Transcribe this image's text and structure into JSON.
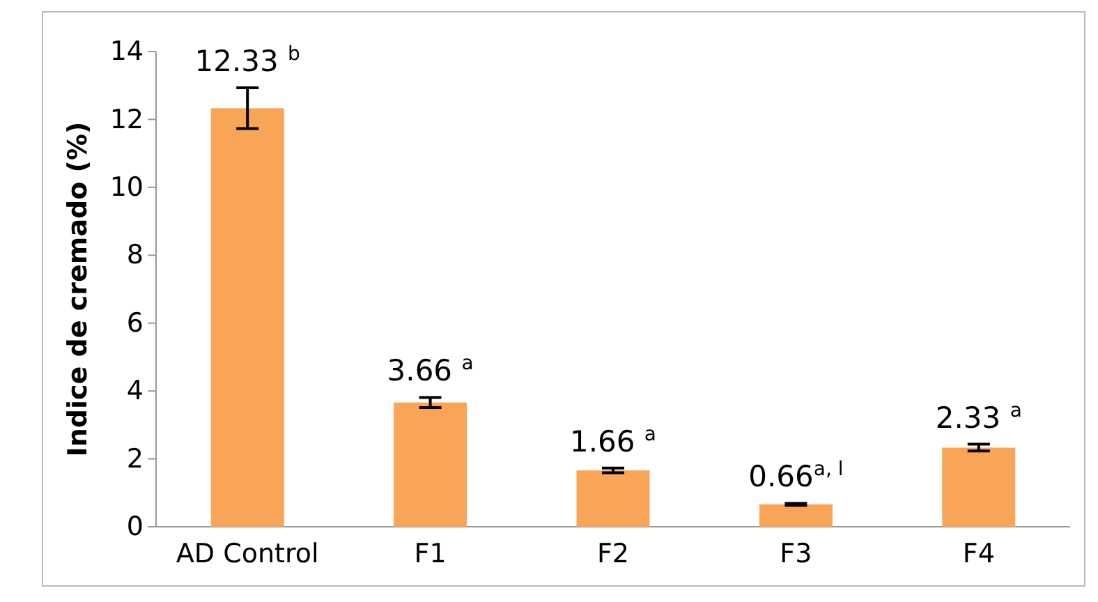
{
  "chart_data": {
    "type": "bar",
    "ylabel": "Indice de cremado (%)",
    "categories": [
      "AD Control",
      "F1",
      "F2",
      "F3",
      "F4"
    ],
    "values": [
      12.33,
      3.66,
      1.66,
      0.66,
      2.33
    ],
    "errors": [
      0.6,
      0.15,
      0.07,
      0.03,
      0.1
    ],
    "value_labels": [
      "12.33 $^{b}$",
      "3.66 $^{a}$",
      "1.66 $^{a}$",
      "0.66$^{a, l}$",
      "2.33 $^{a}$"
    ],
    "color": "#f9a557",
    "ylim": [
      0,
      14
    ],
    "yticks": [
      0,
      2,
      4,
      6,
      8,
      10,
      12,
      14
    ],
    "grid": false
  }
}
